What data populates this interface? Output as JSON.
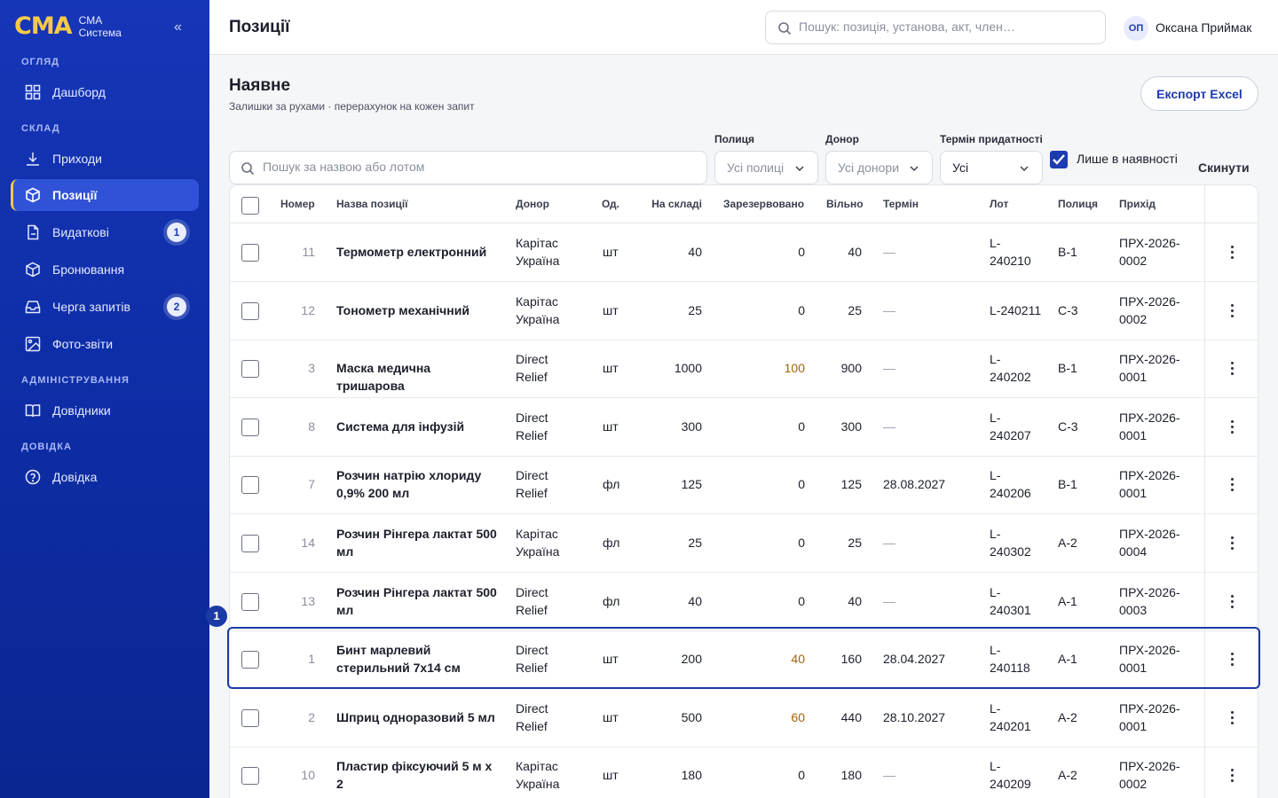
{
  "brand": {
    "logo": "CMA",
    "line1": "CMA",
    "line2": "Система",
    "collapse": "«"
  },
  "sidebar": {
    "sections": [
      "ОГЛЯД",
      "СКЛАД",
      "АДМІНІСТРУВАННЯ",
      "ДОВІДКА"
    ],
    "items": [
      {
        "label": "Дашборд",
        "icon": "dashboard-icon"
      },
      {
        "label": "Приходи",
        "icon": "download-icon"
      },
      {
        "label": "Позиції",
        "icon": "box-icon",
        "active": true
      },
      {
        "label": "Видаткові",
        "icon": "document-icon",
        "badge": "1"
      },
      {
        "label": "Бронювання",
        "icon": "box-outline-icon"
      },
      {
        "label": "Черга запитів",
        "icon": "inbox-icon",
        "badge": "2"
      },
      {
        "label": "Фото-звіти",
        "icon": "image-icon"
      },
      {
        "label": "Довідники",
        "icon": "book-icon"
      },
      {
        "label": "Довідка",
        "icon": "help-icon"
      }
    ]
  },
  "header": {
    "title": "Позиції",
    "search_placeholder": "Пошук: позиція, установа, акт, член…",
    "user_initials": "ОП",
    "user_name": "Оксана Приймак"
  },
  "page": {
    "title": "Наявне",
    "subtitle": "Залишки за рухами · перерахунок на кожен запит",
    "export_label": "Експорт Excel"
  },
  "filters": {
    "search_placeholder": "Пошук за назвою або лотом",
    "shelf_label": "Полиця",
    "shelf_value": "Усі полиці",
    "donor_label": "Донор",
    "donor_value": "Усі донори",
    "expiry_label": "Термін придатності",
    "expiry_value": "Усі",
    "in_stock_label": "Лише в наявності",
    "in_stock_checked": true,
    "reset_label": "Скинути"
  },
  "table": {
    "columns": [
      "Номер",
      "Назва позиції",
      "Донор",
      "Од.",
      "На складі",
      "Зарезервовано",
      "Вільно",
      "Термін",
      "Лот",
      "Полиця",
      "Прихід"
    ],
    "rows": [
      {
        "num": "11",
        "name": [
          "Термометр електронний"
        ],
        "donor": [
          "Карітас",
          "Україна"
        ],
        "unit": "шт",
        "stock": "40",
        "reserved": "0",
        "free": "40",
        "term": "—",
        "lot": [
          "L-",
          "240210"
        ],
        "shelf": "B-1",
        "receipt": [
          "ПРХ-2026-",
          "0002"
        ]
      },
      {
        "num": "12",
        "name": [
          "Тонометр механічний"
        ],
        "donor": [
          "Карітас",
          "Україна"
        ],
        "unit": "шт",
        "stock": "25",
        "reserved": "0",
        "free": "25",
        "term": "—",
        "lot": [
          "L-240211"
        ],
        "shelf": "C-3",
        "receipt": [
          "ПРХ-2026-",
          "0002"
        ]
      },
      {
        "num": "3",
        "name": [
          "Маска медична тришарова"
        ],
        "donor": [
          "Direct",
          "Relief"
        ],
        "unit": "шт",
        "stock": "1000",
        "reserved": "100",
        "free": "900",
        "term": "—",
        "lot": [
          "L-",
          "240202"
        ],
        "shelf": "B-1",
        "receipt": [
          "ПРХ-2026-",
          "0001"
        ]
      },
      {
        "num": "8",
        "name": [
          "Система для інфузій"
        ],
        "donor": [
          "Direct",
          "Relief"
        ],
        "unit": "шт",
        "stock": "300",
        "reserved": "0",
        "free": "300",
        "term": "—",
        "lot": [
          "L-",
          "240207"
        ],
        "shelf": "C-3",
        "receipt": [
          "ПРХ-2026-",
          "0001"
        ]
      },
      {
        "num": "7",
        "name": [
          "Розчин натрію хлориду",
          "0,9% 200 мл"
        ],
        "donor": [
          "Direct",
          "Relief"
        ],
        "unit": "фл",
        "stock": "125",
        "reserved": "0",
        "free": "125",
        "term": "28.08.2027",
        "lot": [
          "L-",
          "240206"
        ],
        "shelf": "B-1",
        "receipt": [
          "ПРХ-2026-",
          "0001"
        ]
      },
      {
        "num": "14",
        "name": [
          "Розчин Рінгера лактат 500",
          "мл"
        ],
        "donor": [
          "Карітас",
          "Україна"
        ],
        "unit": "фл",
        "stock": "25",
        "reserved": "0",
        "free": "25",
        "term": "—",
        "lot": [
          "L-",
          "240302"
        ],
        "shelf": "A-2",
        "receipt": [
          "ПРХ-2026-",
          "0004"
        ]
      },
      {
        "num": "13",
        "name": [
          "Розчин Рінгера лактат 500",
          "мл"
        ],
        "donor": [
          "Direct",
          "Relief"
        ],
        "unit": "фл",
        "stock": "40",
        "reserved": "0",
        "free": "40",
        "term": "—",
        "lot": [
          "L-",
          "240301"
        ],
        "shelf": "A-1",
        "receipt": [
          "ПРХ-2026-",
          "0003"
        ]
      },
      {
        "num": "1",
        "name": [
          "Бинт марлевий",
          "стерильний 7х14 см"
        ],
        "donor": [
          "Direct",
          "Relief"
        ],
        "unit": "шт",
        "stock": "200",
        "reserved": "40",
        "free": "160",
        "term": "28.04.2027",
        "lot": [
          "L-",
          "240118"
        ],
        "shelf": "A-1",
        "receipt": [
          "ПРХ-2026-",
          "0001"
        ]
      },
      {
        "num": "2",
        "name": [
          "Шприц одноразовий 5 мл"
        ],
        "donor": [
          "Direct",
          "Relief"
        ],
        "unit": "шт",
        "stock": "500",
        "reserved": "60",
        "free": "440",
        "term": "28.10.2027",
        "lot": [
          "L-",
          "240201"
        ],
        "shelf": "A-2",
        "receipt": [
          "ПРХ-2026-",
          "0001"
        ]
      },
      {
        "num": "10",
        "name": [
          "Пластир фіксуючий 5 м х 2",
          "см"
        ],
        "donor": [
          "Карітас",
          "Україна"
        ],
        "unit": "шт",
        "stock": "180",
        "reserved": "0",
        "free": "180",
        "term": "—",
        "lot": [
          "L-",
          "240209"
        ],
        "shelf": "A-2",
        "receipt": [
          "ПРХ-2026-",
          "0002"
        ]
      }
    ]
  },
  "annotation": {
    "marker": "1"
  },
  "colors": {
    "sidebar": "#1636b8",
    "accent": "#1d3bb3",
    "brand_yellow": "#f7c948",
    "reserved_warn": "#a0650d"
  }
}
